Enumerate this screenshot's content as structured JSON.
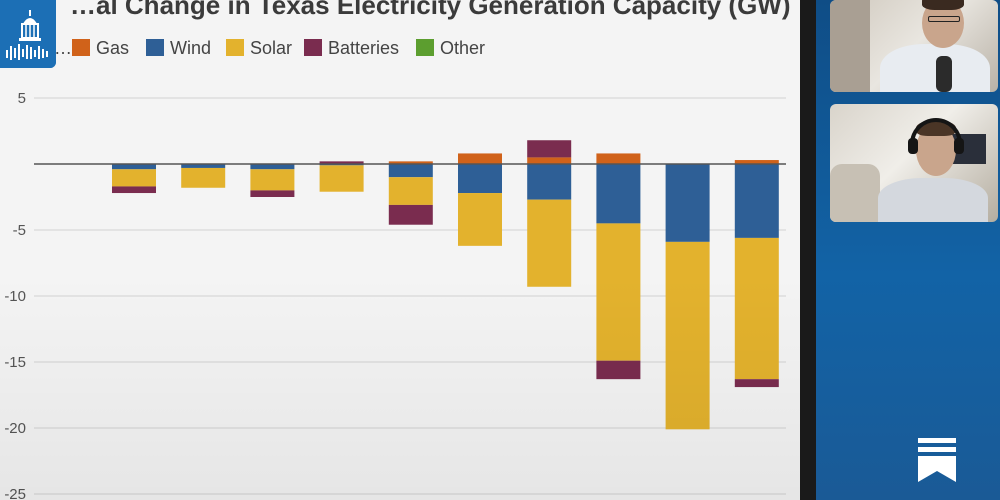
{
  "chart_data": {
    "type": "bar",
    "stacked": true,
    "title": "…al Change in Texas Electricity Generation Capacity (GW)",
    "xlabel": "",
    "ylabel": "",
    "ylim": [
      -25,
      5
    ],
    "yticks": [
      5,
      -5,
      -10,
      -15,
      -20,
      -25
    ],
    "grid": true,
    "legend_position": "top",
    "legend": [
      {
        "name": "…l",
        "color": "#7a7a7a",
        "partial": true
      },
      {
        "name": "Gas",
        "color": "#d0621a"
      },
      {
        "name": "Wind",
        "color": "#2e5f96"
      },
      {
        "name": "Solar",
        "color": "#e3b22d"
      },
      {
        "name": "Batteries",
        "color": "#7a2c4f"
      },
      {
        "name": "Other",
        "color": "#5c9e2f"
      }
    ],
    "categories": [
      "",
      "",
      "",
      "",
      "",
      "",
      "",
      "",
      "",
      ""
    ],
    "series": [
      {
        "name": "Gas",
        "color": "#d0621a",
        "values": [
          0,
          0,
          0,
          0,
          0.2,
          0.8,
          0.5,
          0.8,
          0,
          0.3
        ]
      },
      {
        "name": "Wind",
        "color": "#2e5f96",
        "values": [
          -0.4,
          -0.3,
          -0.4,
          -0.1,
          -1.0,
          -2.2,
          -2.7,
          -4.5,
          -5.9,
          -5.6
        ]
      },
      {
        "name": "Solar",
        "color": "#e3b22d",
        "values": [
          -1.3,
          -1.5,
          -1.6,
          -2.0,
          -2.1,
          -4.0,
          -6.6,
          -10.4,
          -14.2,
          -10.7
        ]
      },
      {
        "name": "Batteries",
        "color": "#7a2c4f",
        "values": [
          -0.5,
          0,
          -0.5,
          0.2,
          -1.5,
          0,
          1.3,
          -1.4,
          0,
          -0.6
        ]
      }
    ]
  },
  "side": {
    "accent": "#1263a6"
  }
}
